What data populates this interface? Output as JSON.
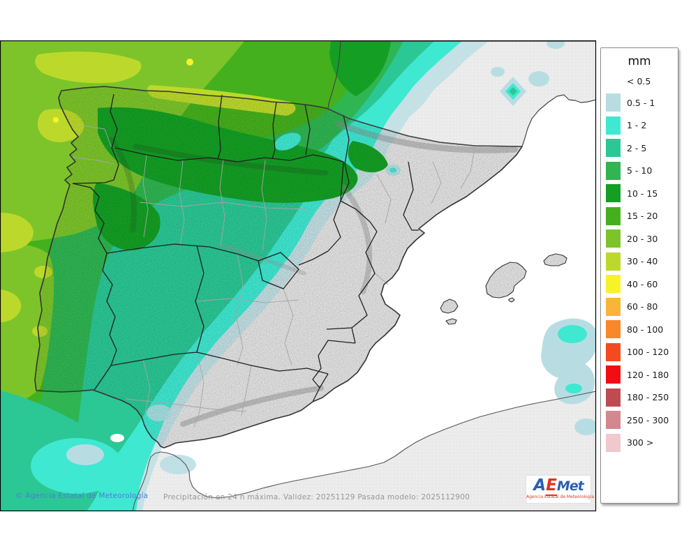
{
  "map": {
    "colors": {
      "sea": "#ffffff",
      "land": "#e3e3e3",
      "neighbor_land": "#eaeaea",
      "map_border": "#000000",
      "coastline": "#333333",
      "region_border": "#1f1f1f",
      "province_border": "#a5a5a5"
    },
    "footer": {
      "attribution": "© Agencia Estatal de Meteorología",
      "model_info": "Precipitación en 24 h máxima. Validez: 20251129 Pasada modelo: 2025112900"
    },
    "logo": {
      "a": "A",
      "e": "E",
      "met": "Met",
      "subtitle": "Agencia Estatal de Meteorología"
    }
  },
  "legend": {
    "title": "mm",
    "no_swatch_label": "< 0.5",
    "entries": [
      {
        "label": "0.5 - 1",
        "color": "#b7dde3"
      },
      {
        "label": "1 - 2",
        "color": "#3fe8d1"
      },
      {
        "label": "2 - 5",
        "color": "#2bc795"
      },
      {
        "label": "5 - 10",
        "color": "#2fb551"
      },
      {
        "label": "10 - 15",
        "color": "#149f24"
      },
      {
        "label": "15 - 20",
        "color": "#45b01d"
      },
      {
        "label": "20 - 30",
        "color": "#7cc42a"
      },
      {
        "label": "30 - 40",
        "color": "#bcd92b"
      },
      {
        "label": "40 - 60",
        "color": "#f7f32b"
      },
      {
        "label": "60 - 80",
        "color": "#f9b43a"
      },
      {
        "label": "80 - 100",
        "color": "#f9872b"
      },
      {
        "label": "100 - 120",
        "color": "#f5491f"
      },
      {
        "label": "120 - 180",
        "color": "#f20d14"
      },
      {
        "label": "180 - 250",
        "color": "#bf4b52"
      },
      {
        "label": "250 - 300",
        "color": "#d4878e"
      },
      {
        "label": "300 >",
        "color": "#efc9cd"
      }
    ]
  }
}
